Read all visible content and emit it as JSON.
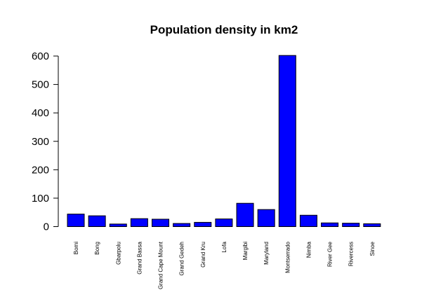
{
  "chart_data": {
    "type": "bar",
    "title": "Population density in km2",
    "xlabel": "",
    "ylabel": "",
    "categories": [
      "Bomi",
      "Bong",
      "Gbarpolu",
      "Grand Bassa",
      "Grand Cape Mount",
      "Grand Gedeh",
      "Grand Kru",
      "Lofa",
      "Margibi",
      "Maryland",
      "Montserrado",
      "Nimba",
      "River Gee",
      "Rivercess",
      "Sinoe"
    ],
    "values": [
      44,
      38,
      9,
      28,
      26,
      11,
      15,
      27,
      82,
      60,
      602,
      40,
      13,
      12,
      10
    ],
    "ylim": [
      0,
      600
    ],
    "yticks": [
      0,
      100,
      200,
      300,
      400,
      500,
      600
    ],
    "grid": false,
    "legend": "none",
    "bar_color": "#0000ff",
    "edge_color": "#000000"
  }
}
